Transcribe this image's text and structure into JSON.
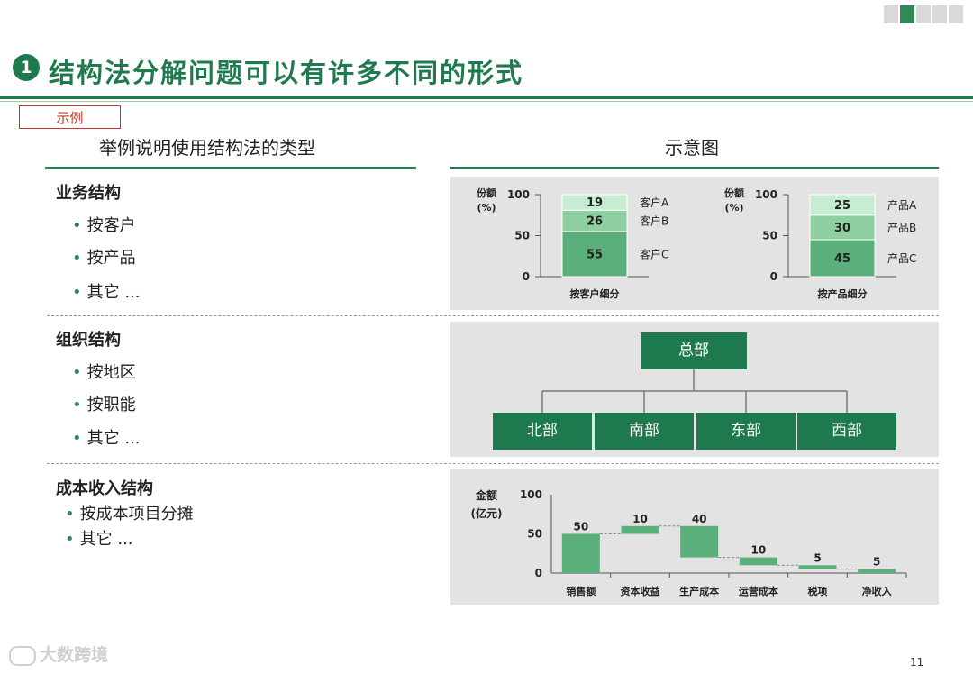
{
  "title": {
    "number": "1",
    "text": "结构法分解问题可以有许多不同的形式"
  },
  "tag": "示例",
  "left_header": "举例说明使用结构法的类型",
  "right_header": "示意图",
  "sections": [
    {
      "title": "业务结构",
      "bullets": [
        "按客户",
        "按产品",
        "其它 ..."
      ]
    },
    {
      "title": "组织结构",
      "bullets": [
        "按地区",
        "按职能",
        "其它 ..."
      ]
    },
    {
      "title": "成本收入结构",
      "bullets": [
        "按成本项目分摊",
        "其它 ..."
      ]
    }
  ],
  "colors": {
    "accent": "#1e7a4e",
    "bar_dark": "#5aaf7a",
    "bar_mid": "#8fd0a2",
    "bar_light": "#c6ecd1",
    "panel": "#e3e3e3",
    "tag": "#c0392b"
  },
  "chart_data": [
    {
      "type": "bar",
      "stacked": true,
      "ylabel": "份额\n(%)",
      "ylim": [
        0,
        100
      ],
      "yticks": [
        0,
        50,
        100
      ],
      "categories": [
        "按客户细分"
      ],
      "series": [
        {
          "name": "客户C",
          "values": [
            55
          ]
        },
        {
          "name": "客户B",
          "values": [
            26
          ]
        },
        {
          "name": "客户A",
          "values": [
            19
          ]
        }
      ]
    },
    {
      "type": "bar",
      "stacked": true,
      "ylabel": "份额\n(%)",
      "ylim": [
        0,
        100
      ],
      "yticks": [
        0,
        50,
        100
      ],
      "categories": [
        "按产品细分"
      ],
      "series": [
        {
          "name": "产品C",
          "values": [
            45
          ]
        },
        {
          "name": "产品B",
          "values": [
            30
          ]
        },
        {
          "name": "产品A",
          "values": [
            25
          ]
        }
      ]
    },
    {
      "type": "bar",
      "subtype": "waterfall",
      "ylabel": "金额\n(亿元)",
      "ylim": [
        0,
        100
      ],
      "yticks": [
        0,
        50,
        100
      ],
      "categories": [
        "销售额",
        "资本收益",
        "生产成本",
        "运营成本",
        "税项",
        "净收入"
      ],
      "values": [
        50,
        10,
        40,
        10,
        5,
        5
      ],
      "ranges": [
        [
          0,
          50
        ],
        [
          50,
          60
        ],
        [
          20,
          60
        ],
        [
          10,
          20
        ],
        [
          5,
          10
        ],
        [
          0,
          5
        ]
      ]
    }
  ],
  "org_chart": {
    "root": "总部",
    "children": [
      "北部",
      "南部",
      "东部",
      "西部"
    ]
  },
  "footer": {
    "logo_text": "大数跨境",
    "page_number": "11"
  }
}
